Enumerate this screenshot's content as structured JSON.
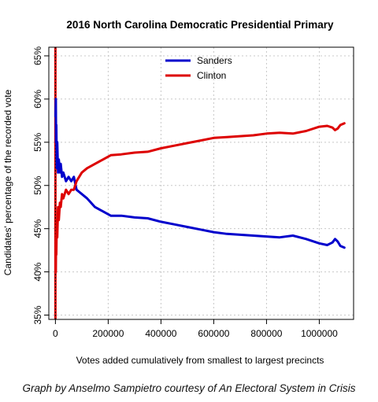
{
  "chart_data": {
    "type": "line",
    "title": "2016 North Carolina Democratic Presidential Primary",
    "xlabel": "Votes added cumulatively from smallest to largest precincts",
    "ylabel": "Candidates' percentage of the recorded vote",
    "xlim": [
      -25000,
      1130000
    ],
    "ylim": [
      34.5,
      66
    ],
    "xticks": [
      0,
      200000,
      400000,
      600000,
      800000,
      1000000
    ],
    "xtick_labels": [
      "0",
      "200000",
      "400000",
      "600000",
      "800000",
      "1000000"
    ],
    "yticks": [
      35,
      40,
      45,
      50,
      55,
      60,
      65
    ],
    "ytick_labels": [
      "35%",
      "40%",
      "45%",
      "50%",
      "55%",
      "60%",
      "65%"
    ],
    "grid": true,
    "legend_position": "top-center",
    "vertical_marker_x": 0,
    "series": [
      {
        "name": "Sanders",
        "color": "#0000CC",
        "x": [
          300,
          1500,
          2500,
          3500,
          5000,
          7000,
          10000,
          13000,
          17000,
          20000,
          25000,
          30000,
          40000,
          50000,
          60000,
          70000,
          80000,
          100000,
          120000,
          150000,
          180000,
          210000,
          250000,
          300000,
          350000,
          400000,
          450000,
          500000,
          550000,
          600000,
          650000,
          700000,
          750000,
          800000,
          850000,
          900000,
          950000,
          1000000,
          1030000,
          1050000,
          1060000,
          1070000,
          1080000,
          1095000
        ],
        "y": [
          58,
          60,
          55,
          57,
          52,
          55,
          51.5,
          53,
          51.5,
          52.5,
          51,
          51.5,
          50.5,
          51,
          50.5,
          51,
          49.5,
          49,
          48.5,
          47.5,
          47,
          46.5,
          46.5,
          46.3,
          46.2,
          45.8,
          45.5,
          45.2,
          44.9,
          44.6,
          44.4,
          44.3,
          44.2,
          44.1,
          44.0,
          44.2,
          43.8,
          43.3,
          43.1,
          43.4,
          43.8,
          43.5,
          43.0,
          42.8
        ]
      },
      {
        "name": "Clinton",
        "color": "#DD0000",
        "x": [
          300,
          1500,
          2500,
          3500,
          5000,
          7000,
          10000,
          13000,
          17000,
          20000,
          25000,
          30000,
          40000,
          50000,
          60000,
          70000,
          80000,
          100000,
          120000,
          150000,
          180000,
          210000,
          250000,
          300000,
          350000,
          400000,
          450000,
          500000,
          550000,
          600000,
          650000,
          700000,
          750000,
          800000,
          850000,
          900000,
          950000,
          1000000,
          1030000,
          1050000,
          1060000,
          1070000,
          1080000,
          1095000
        ],
        "y": [
          42,
          40,
          44,
          42,
          46,
          44,
          47.5,
          46,
          48,
          47.5,
          49,
          48.5,
          49.5,
          49,
          49.5,
          49.5,
          50.5,
          51.5,
          52,
          52.5,
          53,
          53.5,
          53.6,
          53.8,
          53.9,
          54.3,
          54.6,
          54.9,
          55.2,
          55.5,
          55.6,
          55.7,
          55.8,
          56.0,
          56.1,
          56.0,
          56.3,
          56.8,
          56.9,
          56.7,
          56.4,
          56.6,
          57.0,
          57.2
        ]
      }
    ]
  },
  "credit": "Graph by Anselmo Sampietro courtesy of An Electoral System in Crisis"
}
